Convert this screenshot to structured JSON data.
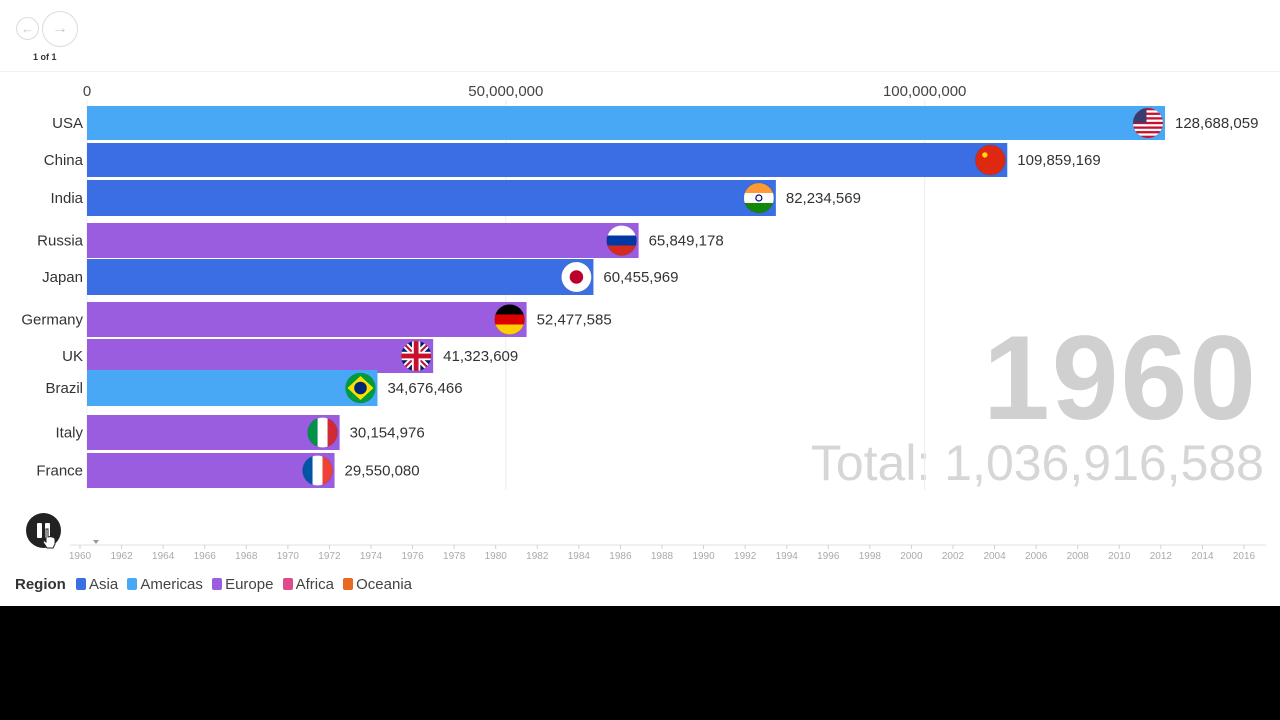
{
  "navigation": {
    "page_indicator": "1 of 1",
    "back_icon": "arrow-left-icon",
    "forward_icon": "arrow-right-icon"
  },
  "display": {
    "year": "1960",
    "total": "Total: 1,036,916,588"
  },
  "controls": {
    "play_icon": "pause-icon"
  },
  "legend": {
    "title": "Region",
    "items": [
      {
        "label": "Asia",
        "color": "#3b6ee3"
      },
      {
        "label": "Americas",
        "color": "#49a8f5"
      },
      {
        "label": "Europe",
        "color": "#9b5de0"
      },
      {
        "label": "Africa",
        "color": "#e04a8a"
      },
      {
        "label": "Oceania",
        "color": "#e8681f"
      }
    ]
  },
  "chart_data": {
    "type": "bar",
    "orientation": "horizontal",
    "year": 1960,
    "xlim": [
      0,
      128688059
    ],
    "x_ticks": [
      0,
      50000000,
      100000000
    ],
    "x_tick_labels": [
      "0",
      "50,000,000",
      "100,000,000"
    ],
    "categories": [
      "USA",
      "China",
      "India",
      "Russia",
      "Japan",
      "Germany",
      "UK",
      "Brazil",
      "Italy",
      "France"
    ],
    "values": [
      128688059,
      109859169,
      82234569,
      65849178,
      60455969,
      52477585,
      41323609,
      34676466,
      30154976,
      29550080
    ],
    "value_labels": [
      "128,688,059",
      "109,859,169",
      "82,234,569",
      "65,849,178",
      "60,455,969",
      "52,477,585",
      "41,323,609",
      "34,676,466",
      "30,154,976",
      "29,550,080"
    ],
    "regions": [
      "Americas",
      "Asia",
      "Asia",
      "Europe",
      "Asia",
      "Europe",
      "Europe",
      "Americas",
      "Europe",
      "Europe"
    ],
    "flag_icons": [
      "usa-flag-icon",
      "china-flag-icon",
      "india-flag-icon",
      "russia-flag-icon",
      "japan-flag-icon",
      "germany-flag-icon",
      "uk-flag-icon",
      "brazil-flag-icon",
      "italy-flag-icon",
      "france-flag-icon"
    ],
    "timeline": {
      "start": 1960,
      "end": 2016,
      "current": 1960,
      "tick_labels": [
        "1960",
        "1962",
        "1964",
        "1966",
        "1968",
        "1970",
        "1972",
        "1974",
        "1976",
        "1978",
        "1980",
        "1982",
        "1984",
        "1986",
        "1988",
        "1990",
        "1992",
        "1994",
        "1996",
        "1998",
        "2000",
        "2002",
        "2004",
        "2006",
        "2008",
        "2010",
        "2012",
        "2014",
        "2016"
      ]
    }
  }
}
